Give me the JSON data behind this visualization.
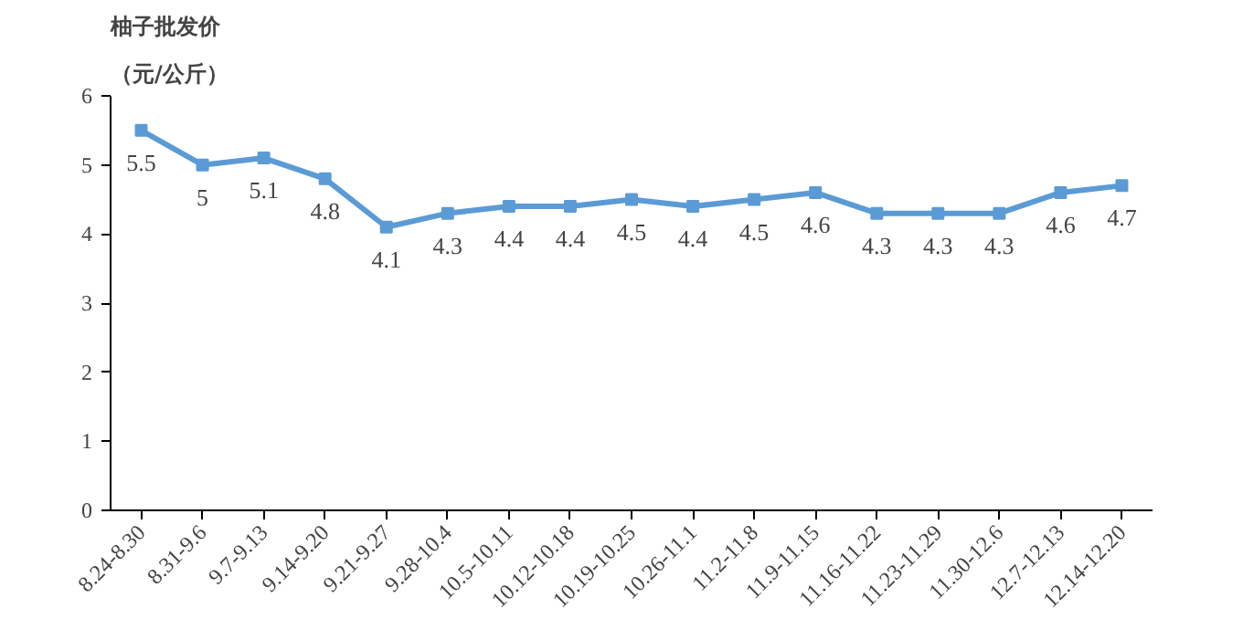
{
  "chart_data": {
    "type": "line",
    "title": "柚子批发价",
    "ylabel": "（元/公斤）",
    "categories": [
      "8.24-8.30",
      "8.31-9.6",
      "9.7-9.13",
      "9.14-9.20",
      "9.21-9.27",
      "9.28-10.4",
      "10.5-10.11",
      "10.12-10.18",
      "10.19-10.25",
      "10.26-11.1",
      "11.2-11.8",
      "11.9-11.15",
      "11.16-11.22",
      "11.23-11.29",
      "11.30-12.6",
      "12.7-12.13",
      "12.14-12.20"
    ],
    "series": [
      {
        "color": "#5b9bd5",
        "values": [
          5.5,
          5,
          5.1,
          4.8,
          4.1,
          4.3,
          4.4,
          4.4,
          4.5,
          4.4,
          4.5,
          4.6,
          4.3,
          4.3,
          4.3,
          4.6,
          4.7
        ]
      }
    ],
    "ylim": [
      0,
      6
    ],
    "yticks": [
      0,
      1,
      2,
      3,
      4,
      5,
      6
    ],
    "grid": false,
    "marker": "square",
    "line_style": "solid",
    "data_labels": true
  }
}
